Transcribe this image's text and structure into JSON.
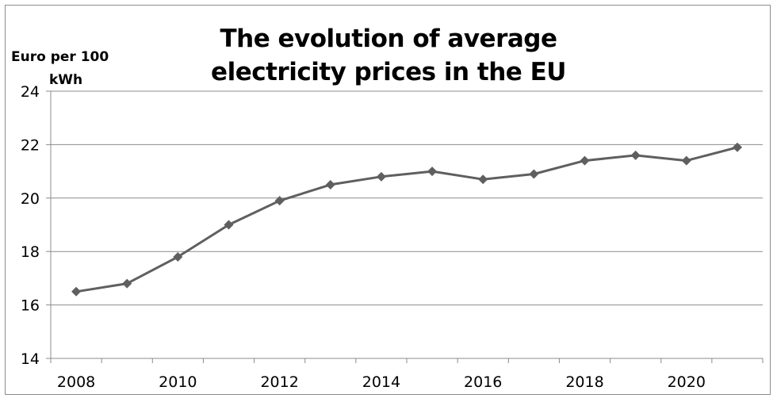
{
  "chart_data": {
    "type": "line",
    "title_lines": [
      "The evolution of average",
      "electricity prices in the EU"
    ],
    "ylabel_lines": [
      "Euro per 100",
      "kWh"
    ],
    "xlabel": "",
    "x": [
      2008,
      2009,
      2010,
      2011,
      2012,
      2013,
      2014,
      2015,
      2016,
      2017,
      2018,
      2019,
      2020,
      2021
    ],
    "x_tick_labels": [
      "2008",
      "2010",
      "2012",
      "2014",
      "2016",
      "2018",
      "2020"
    ],
    "series": [
      {
        "values": [
          16.5,
          16.8,
          17.8,
          19.0,
          19.9,
          20.5,
          20.8,
          21.0,
          20.7,
          20.9,
          21.4,
          21.6,
          21.4,
          21.9
        ],
        "color": "#5f5f5f",
        "marker": "diamond"
      }
    ],
    "ylim": [
      14,
      24
    ],
    "y_ticks": [
      14,
      16,
      18,
      20,
      22,
      24
    ],
    "grid": "horizontal",
    "gridline_color": "#8c8c8c"
  }
}
